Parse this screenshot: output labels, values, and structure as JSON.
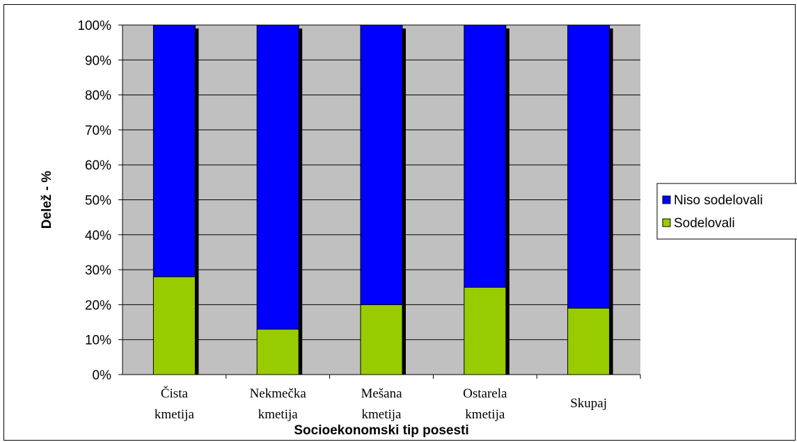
{
  "chart_data": {
    "type": "bar",
    "stacked": true,
    "percent": true,
    "categories": [
      [
        "Čista",
        "kmetija"
      ],
      [
        "Nekmečka",
        "kmetija"
      ],
      [
        "Mešana",
        "kmetija"
      ],
      [
        "Ostarela",
        "kmetija"
      ],
      [
        "Skupaj"
      ]
    ],
    "series": [
      {
        "name": "Sodelovali",
        "color": "#99cc00",
        "values": [
          28,
          13,
          20,
          25,
          19
        ]
      },
      {
        "name": "Niso sodelovali",
        "color": "#0000ff",
        "values": [
          72,
          87,
          80,
          75,
          81
        ]
      }
    ],
    "legend_order": [
      "Niso sodelovali",
      "Sodelovali"
    ],
    "yticks": [
      "0%",
      "10%",
      "20%",
      "30%",
      "40%",
      "50%",
      "60%",
      "70%",
      "80%",
      "90%",
      "100%"
    ],
    "ylim": [
      0,
      100
    ],
    "xlabel": "Socioekonomski tip posesti",
    "ylabel": "Delež - %",
    "grid": true,
    "legend_position": "right",
    "plot_background": "#c0c0c0"
  }
}
